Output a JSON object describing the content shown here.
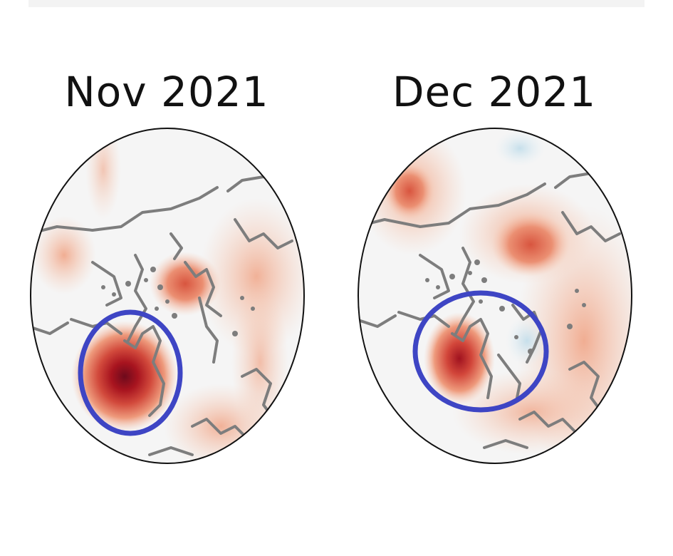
{
  "panels": [
    {
      "title": "Nov 2021"
    },
    {
      "title": "Dec 2021"
    }
  ],
  "colors": {
    "map_background": "#f5f5f5",
    "warm_light": "#f4b89c",
    "warm_mid": "#e27358",
    "warm_strong": "#c0282b",
    "warm_peak": "#7a0b1e",
    "cool_light": "#cfe4ee",
    "highlight_ellipse": "#3e45c4",
    "coastline": "#7d7d7d",
    "border": "#111111"
  }
}
